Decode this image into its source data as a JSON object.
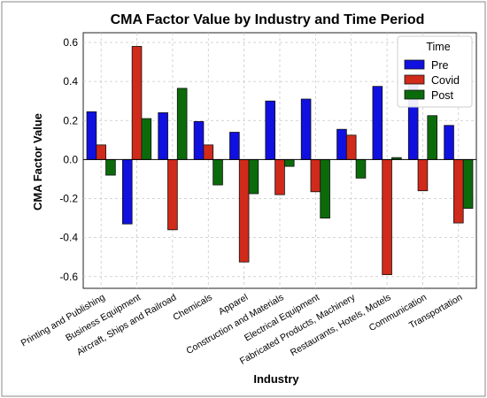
{
  "chart_data": {
    "type": "bar",
    "title": "CMA Factor Value by Industry and Time Period",
    "xlabel": "Industry",
    "ylabel": "CMA Factor Value",
    "ylim": [
      -0.66,
      0.65
    ],
    "yticks": [
      -0.6,
      -0.4,
      -0.2,
      0.0,
      0.2,
      0.4,
      0.6
    ],
    "grid": true,
    "legend_position": "top-right",
    "legend_title": "Time",
    "categories": [
      "Printing and Publishing",
      "Business Equipment",
      "Aircraft, Ships and Railroad",
      "Chemicals",
      "Apparel",
      "Construction and Materials",
      "Electrical Equipment",
      "Fabricated Products, Machinery",
      "Restaurants, Hotels, Motels",
      "Communication",
      "Transportation"
    ],
    "series": [
      {
        "name": "Pre",
        "color": "#1010e0",
        "values": [
          0.245,
          -0.33,
          0.24,
          0.195,
          0.14,
          0.3,
          0.31,
          0.155,
          0.375,
          0.38,
          0.175
        ]
      },
      {
        "name": "Covid",
        "color": "#d02a1a",
        "values": [
          0.075,
          0.58,
          -0.36,
          0.075,
          -0.525,
          -0.18,
          -0.165,
          0.125,
          -0.59,
          -0.16,
          -0.325
        ]
      },
      {
        "name": "Post",
        "color": "#0b6b0b",
        "values": [
          -0.08,
          0.21,
          0.365,
          -0.13,
          -0.175,
          -0.035,
          -0.3,
          -0.095,
          0.01,
          0.225,
          -0.25
        ]
      }
    ]
  }
}
